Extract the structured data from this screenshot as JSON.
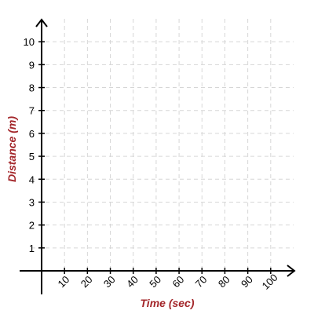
{
  "chart_data": {
    "type": "grid",
    "xlabel": "Time (sec)",
    "ylabel": "Distance (m)",
    "xlim": [
      0,
      110
    ],
    "ylim": [
      0,
      11
    ],
    "xticks": [
      10,
      20,
      30,
      40,
      50,
      60,
      70,
      80,
      90,
      100
    ],
    "yticks": [
      1,
      2,
      3,
      4,
      5,
      6,
      7,
      8,
      9,
      10
    ],
    "grid": true,
    "label_color": "#a3262a"
  }
}
